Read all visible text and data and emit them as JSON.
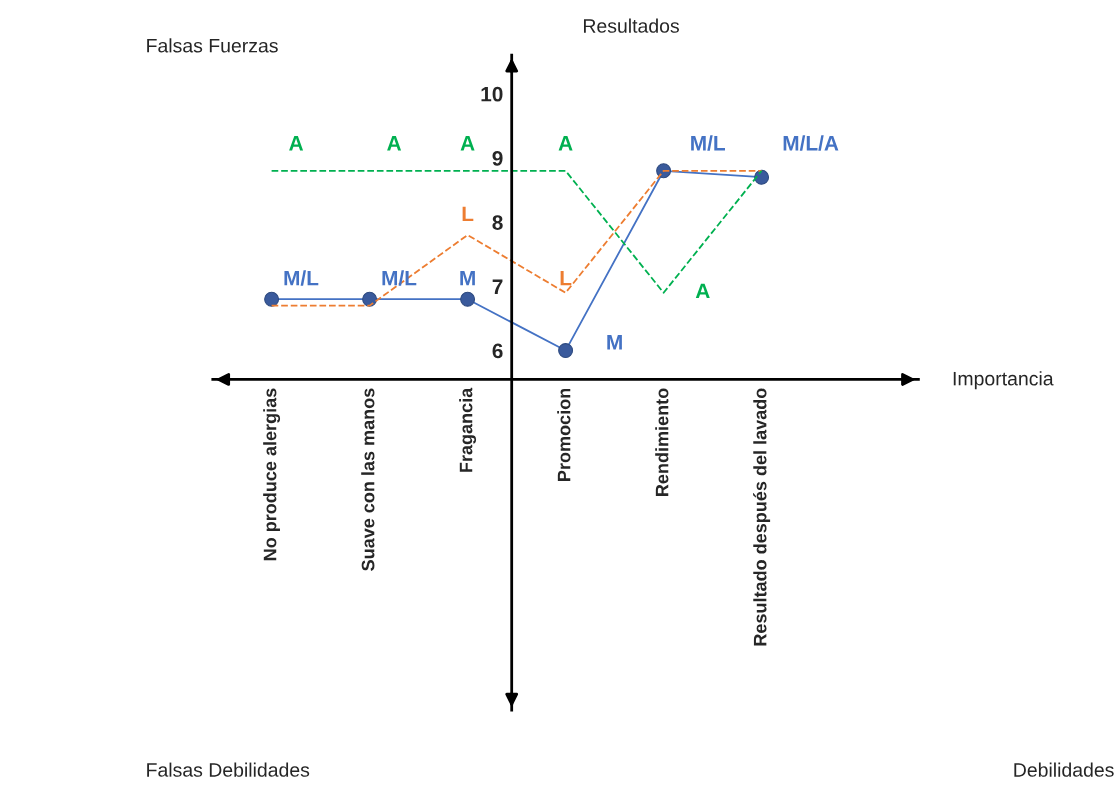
{
  "chart_data": {
    "type": "line",
    "categories": [
      "No produce alergias",
      "Suave con las manos",
      "Fragancia",
      "Promocion",
      "Rendimiento",
      "Resultado después del lavado"
    ],
    "series": [
      {
        "color": "#4472c4",
        "values": [
          6.8,
          6.8,
          6.8,
          6.0,
          8.8,
          8.7
        ],
        "marker": "circle",
        "line_style": "solid"
      },
      {
        "color": "#ed7d31",
        "values": [
          6.7,
          6.7,
          7.8,
          6.9,
          8.8,
          8.8
        ],
        "marker": "none",
        "line_style": "dashed"
      },
      {
        "color": "#00b050",
        "values": [
          8.8,
          8.8,
          8.8,
          8.8,
          6.9,
          8.8
        ],
        "marker": "none",
        "line_style": "dashed"
      }
    ],
    "ylim": [
      0.4,
      10.6
    ],
    "yticks": [
      6,
      7,
      8,
      9,
      10
    ],
    "grid": false,
    "legend": false,
    "annotations": [
      "Falsas Fuerzas",
      "Resultados",
      "Importancia",
      "Falsas Debilidades",
      "Debilidades",
      "A",
      "A",
      "A",
      "A",
      "M/L",
      "M/L/A",
      "M/L",
      "M/L",
      "M",
      "L",
      "L",
      "M",
      "A"
    ]
  }
}
